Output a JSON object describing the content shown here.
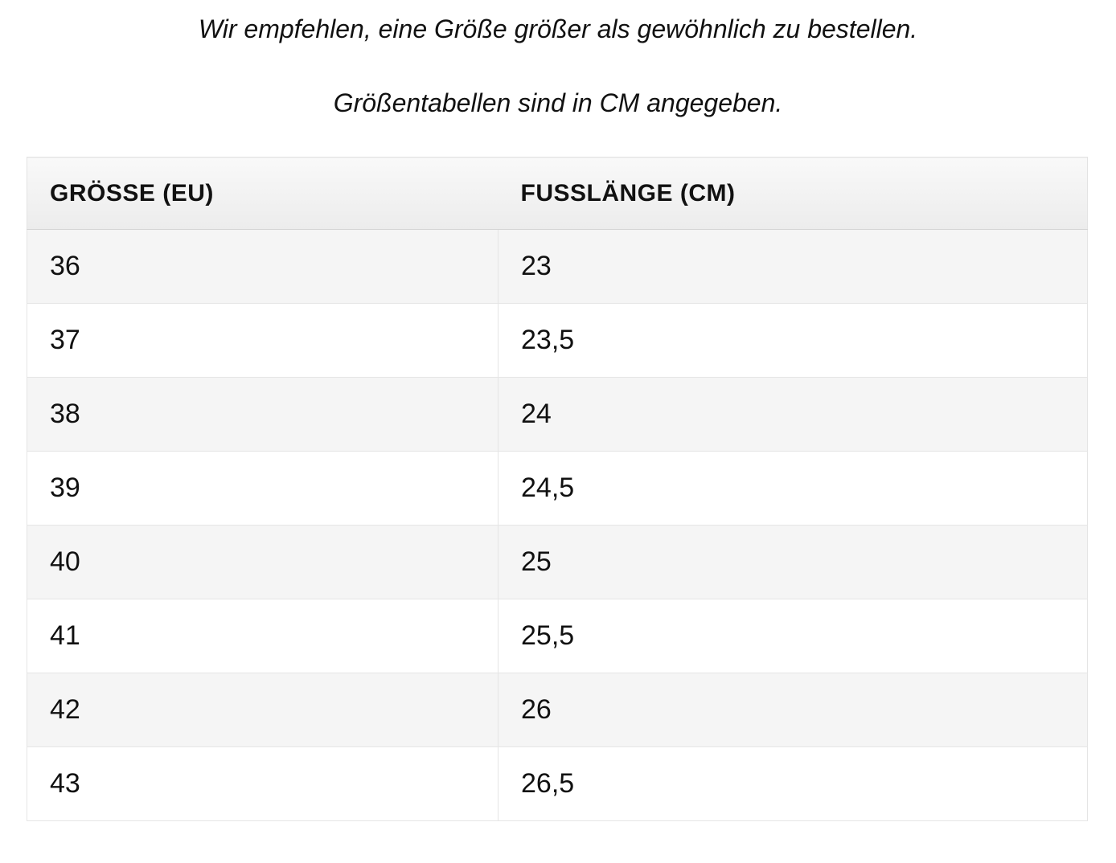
{
  "notes": {
    "line1": "Wir empfehlen, eine Größe größer als gewöhnlich zu bestellen.",
    "line2": "Größentabellen sind in CM angegeben."
  },
  "size_table": {
    "columns": [
      "GRÖSSE (EU)",
      "FUSSLÄNGE (CM)"
    ],
    "rows": [
      {
        "eu": "36",
        "cm": "23"
      },
      {
        "eu": "37",
        "cm": "23,5"
      },
      {
        "eu": "38",
        "cm": "24"
      },
      {
        "eu": "39",
        "cm": "24,5"
      },
      {
        "eu": "40",
        "cm": "25"
      },
      {
        "eu": "41",
        "cm": "25,5"
      },
      {
        "eu": "42",
        "cm": "26"
      },
      {
        "eu": "43",
        "cm": "26,5"
      }
    ]
  },
  "colors": {
    "text": "#111111",
    "row_alt_background": "#f5f5f5",
    "row_background": "#ffffff",
    "cell_border": "#e5e5e5",
    "header_gradient_top": "#f9f9f9",
    "header_gradient_bottom": "#ececec",
    "header_bottom_border": "#d5d5d5"
  }
}
